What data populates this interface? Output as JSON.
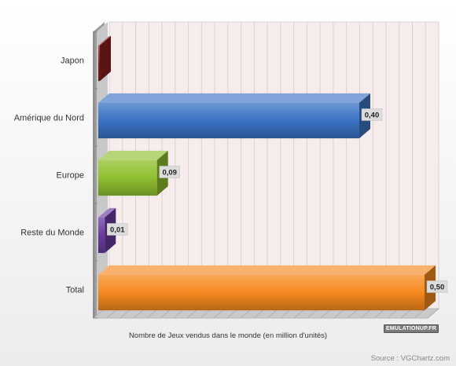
{
  "chart_data": {
    "type": "bar",
    "orientation": "horizontal",
    "categories": [
      "Japon",
      "Amérique du Nord",
      "Europe",
      "Reste du Monde",
      "Total"
    ],
    "values": [
      0.0,
      0.4,
      0.09,
      0.01,
      0.5
    ],
    "data_labels": [
      "",
      "0,40",
      "0,09",
      "0,01",
      "0,50"
    ],
    "colors": [
      "#8a1e1e",
      "#3b73c4",
      "#8fbf2e",
      "#6a3aa0",
      "#f5891f"
    ],
    "xlabel": "Nombre de Jeux vendus dans le monde (en million d'unités)",
    "xlim": [
      0,
      0.5
    ],
    "grid": true,
    "style": "3d"
  },
  "source": "Source : VGChartz.com",
  "logo_text": "EMULATIONUP.FR"
}
